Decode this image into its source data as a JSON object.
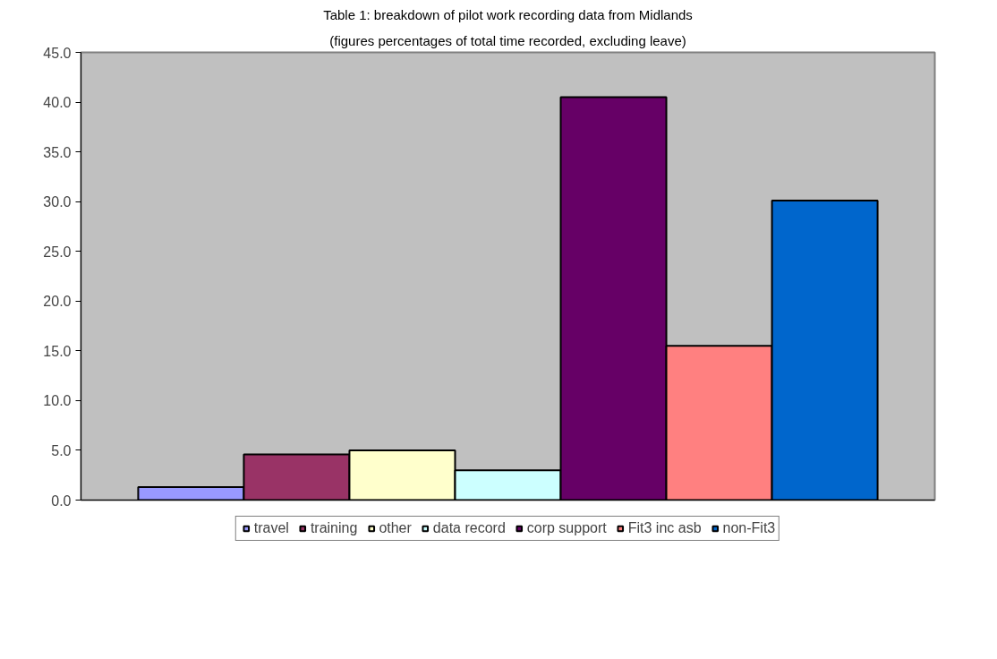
{
  "chart_data": {
    "type": "bar",
    "title": "Table 1: breakdown of pilot work recording data from Midlands",
    "subtitle": "(figures percentages of total time recorded, excluding leave)",
    "categories": [
      null
    ],
    "series": [
      {
        "name": "travel",
        "color": "#9999ff",
        "values": [
          1.3
        ]
      },
      {
        "name": "training",
        "color": "#993366",
        "values": [
          4.6
        ]
      },
      {
        "name": "other",
        "color": "#ffffcc",
        "values": [
          5.0
        ]
      },
      {
        "name": "data record",
        "color": "#ccffff",
        "values": [
          3.0
        ]
      },
      {
        "name": "corp support",
        "color": "#660066",
        "values": [
          40.5
        ]
      },
      {
        "name": "Fit3 inc asb",
        "color": "#ff8080",
        "values": [
          15.5
        ]
      },
      {
        "name": "non-Fit3",
        "color": "#0066cc",
        "values": [
          30.1
        ]
      }
    ],
    "ylim": [
      0,
      45
    ],
    "yticks": [
      {
        "value": 0,
        "label": "0.0"
      },
      {
        "value": 5,
        "label": "5.0"
      },
      {
        "value": 10,
        "label": "10.0"
      },
      {
        "value": 15,
        "label": "15.0"
      },
      {
        "value": 20,
        "label": "20.0"
      },
      {
        "value": 25,
        "label": "25.0"
      },
      {
        "value": 30,
        "label": "30.0"
      },
      {
        "value": 35,
        "label": "35.0"
      },
      {
        "value": 40,
        "label": "40.0"
      },
      {
        "value": 45,
        "label": "45.0"
      }
    ],
    "grid": false,
    "legend": "bottom"
  }
}
